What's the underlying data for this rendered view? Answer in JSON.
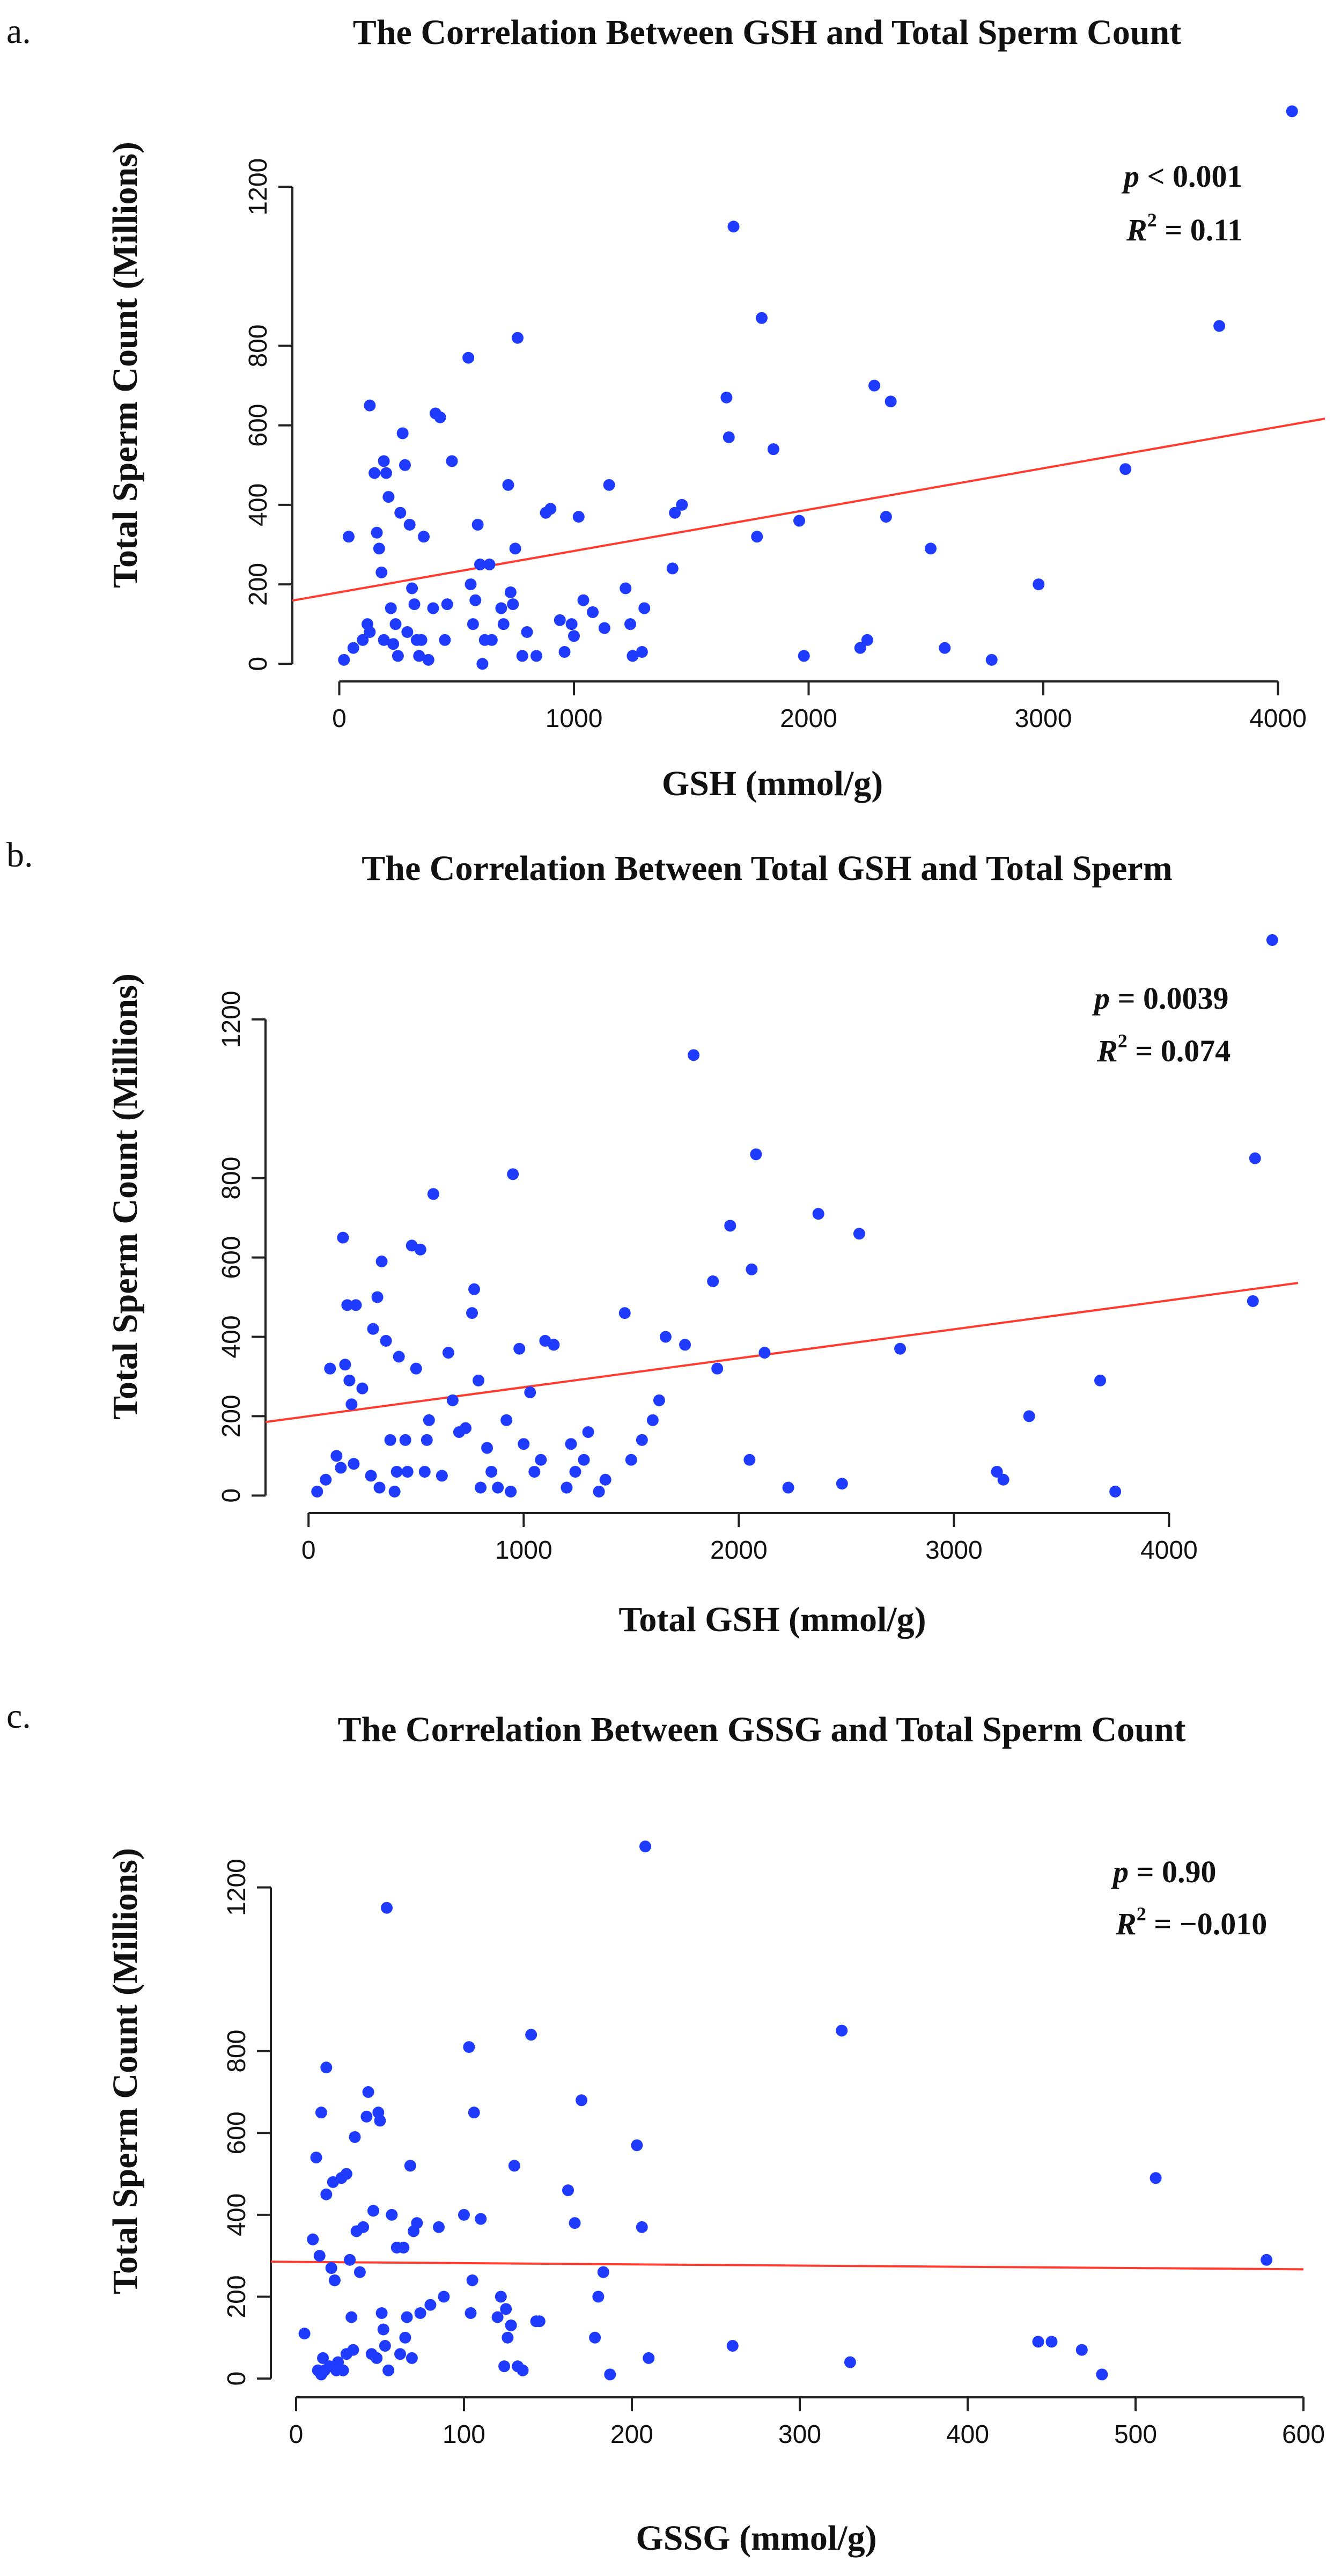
{
  "chart_data": [
    {
      "type": "scatter",
      "panel_label": "a.",
      "title": "The Correlation Between GSH and Total Sperm Count",
      "xlabel": "GSH (mmol/g)",
      "ylabel": "Total Sperm Count (Millions)",
      "xlim": [
        -200,
        4200
      ],
      "ylim": [
        -55,
        1400
      ],
      "x_ticks": [
        0,
        1000,
        2000,
        3000,
        4000
      ],
      "y_ticks": [
        0,
        200,
        400,
        600,
        800,
        1200
      ],
      "stats": {
        "p_prefix": "p",
        "p_text": " < 0.001",
        "r2_prefix": "R",
        "r2_sup": "2",
        "r2_text": " = 0.11"
      },
      "regression": {
        "intercept": 180,
        "slope": 0.104
      },
      "colors": {
        "points": "#1f3bff",
        "line": "#ff3a2e"
      },
      "points": [
        [
          20,
          10
        ],
        [
          40,
          320
        ],
        [
          60,
          40
        ],
        [
          100,
          60
        ],
        [
          120,
          100
        ],
        [
          130,
          80
        ],
        [
          130,
          650
        ],
        [
          150,
          480
        ],
        [
          160,
          330
        ],
        [
          170,
          290
        ],
        [
          180,
          230
        ],
        [
          190,
          510
        ],
        [
          190,
          60
        ],
        [
          200,
          480
        ],
        [
          210,
          420
        ],
        [
          220,
          140
        ],
        [
          230,
          50
        ],
        [
          240,
          100
        ],
        [
          250,
          20
        ],
        [
          260,
          380
        ],
        [
          270,
          580
        ],
        [
          280,
          500
        ],
        [
          290,
          80
        ],
        [
          300,
          350
        ],
        [
          310,
          190
        ],
        [
          320,
          150
        ],
        [
          330,
          60
        ],
        [
          340,
          20
        ],
        [
          350,
          60
        ],
        [
          360,
          320
        ],
        [
          380,
          10
        ],
        [
          400,
          140
        ],
        [
          410,
          630
        ],
        [
          430,
          620
        ],
        [
          450,
          60
        ],
        [
          460,
          150
        ],
        [
          480,
          510
        ],
        [
          550,
          770
        ],
        [
          560,
          200
        ],
        [
          570,
          100
        ],
        [
          580,
          160
        ],
        [
          590,
          350
        ],
        [
          600,
          250
        ],
        [
          610,
          0
        ],
        [
          620,
          60
        ],
        [
          640,
          250
        ],
        [
          650,
          60
        ],
        [
          690,
          140
        ],
        [
          700,
          100
        ],
        [
          720,
          450
        ],
        [
          730,
          180
        ],
        [
          740,
          150
        ],
        [
          750,
          290
        ],
        [
          760,
          820
        ],
        [
          780,
          20
        ],
        [
          800,
          80
        ],
        [
          840,
          20
        ],
        [
          880,
          380
        ],
        [
          900,
          390
        ],
        [
          940,
          110
        ],
        [
          960,
          30
        ],
        [
          990,
          100
        ],
        [
          1000,
          70
        ],
        [
          1020,
          370
        ],
        [
          1040,
          160
        ],
        [
          1080,
          130
        ],
        [
          1130,
          90
        ],
        [
          1150,
          450
        ],
        [
          1220,
          190
        ],
        [
          1240,
          100
        ],
        [
          1250,
          20
        ],
        [
          1290,
          30
        ],
        [
          1300,
          140
        ],
        [
          1420,
          240
        ],
        [
          1430,
          380
        ],
        [
          1460,
          400
        ],
        [
          1650,
          670
        ],
        [
          1660,
          570
        ],
        [
          1680,
          1100
        ],
        [
          1780,
          320
        ],
        [
          1800,
          870
        ],
        [
          1850,
          540
        ],
        [
          1960,
          360
        ],
        [
          1980,
          20
        ],
        [
          2220,
          40
        ],
        [
          2250,
          60
        ],
        [
          2280,
          700
        ],
        [
          2330,
          370
        ],
        [
          2350,
          660
        ],
        [
          2520,
          290
        ],
        [
          2580,
          40
        ],
        [
          2780,
          10
        ],
        [
          2980,
          200
        ],
        [
          3350,
          490
        ],
        [
          3750,
          850
        ],
        [
          4060,
          1390
        ]
      ]
    },
    {
      "type": "scatter",
      "panel_label": "b.",
      "title": "The Correlation Between Total GSH and Total Sperm",
      "xlabel": "Total GSH (mmol/g)",
      "ylabel": "Total Sperm Count (Millions)",
      "xlim": [
        -200,
        4600
      ],
      "ylim": [
        -55,
        1400
      ],
      "x_ticks": [
        0,
        1000,
        2000,
        3000,
        4000
      ],
      "y_ticks": [
        0,
        200,
        400,
        600,
        800,
        1200
      ],
      "stats": {
        "p_prefix": "p",
        "p_text": " = 0.0039",
        "r2_prefix": "R",
        "r2_sup": "2",
        "r2_text": " = 0.074"
      },
      "regression": {
        "intercept": 200,
        "slope": 0.073
      },
      "colors": {
        "points": "#1f3bff",
        "line": "#ff3a2e"
      },
      "points": [
        [
          40,
          10
        ],
        [
          80,
          40
        ],
        [
          100,
          320
        ],
        [
          130,
          100
        ],
        [
          150,
          70
        ],
        [
          160,
          650
        ],
        [
          170,
          330
        ],
        [
          180,
          480
        ],
        [
          190,
          290
        ],
        [
          200,
          230
        ],
        [
          210,
          80
        ],
        [
          220,
          480
        ],
        [
          250,
          270
        ],
        [
          290,
          50
        ],
        [
          300,
          420
        ],
        [
          320,
          500
        ],
        [
          330,
          20
        ],
        [
          340,
          590
        ],
        [
          360,
          390
        ],
        [
          380,
          140
        ],
        [
          400,
          10
        ],
        [
          410,
          60
        ],
        [
          420,
          350
        ],
        [
          450,
          140
        ],
        [
          460,
          60
        ],
        [
          480,
          630
        ],
        [
          500,
          320
        ],
        [
          520,
          620
        ],
        [
          540,
          60
        ],
        [
          550,
          140
        ],
        [
          560,
          190
        ],
        [
          580,
          760
        ],
        [
          620,
          50
        ],
        [
          650,
          360
        ],
        [
          670,
          240
        ],
        [
          700,
          160
        ],
        [
          730,
          170
        ],
        [
          760,
          460
        ],
        [
          770,
          520
        ],
        [
          790,
          290
        ],
        [
          800,
          20
        ],
        [
          830,
          120
        ],
        [
          850,
          60
        ],
        [
          880,
          20
        ],
        [
          920,
          190
        ],
        [
          940,
          10
        ],
        [
          950,
          810
        ],
        [
          980,
          370
        ],
        [
          1000,
          130
        ],
        [
          1030,
          260
        ],
        [
          1050,
          60
        ],
        [
          1080,
          90
        ],
        [
          1100,
          390
        ],
        [
          1140,
          380
        ],
        [
          1200,
          20
        ],
        [
          1220,
          130
        ],
        [
          1240,
          60
        ],
        [
          1280,
          90
        ],
        [
          1300,
          160
        ],
        [
          1350,
          10
        ],
        [
          1380,
          40
        ],
        [
          1470,
          460
        ],
        [
          1500,
          90
        ],
        [
          1550,
          140
        ],
        [
          1600,
          190
        ],
        [
          1630,
          240
        ],
        [
          1660,
          400
        ],
        [
          1750,
          380
        ],
        [
          1790,
          1110
        ],
        [
          1880,
          540
        ],
        [
          1900,
          320
        ],
        [
          1960,
          680
        ],
        [
          2050,
          90
        ],
        [
          2060,
          570
        ],
        [
          2080,
          860
        ],
        [
          2120,
          360
        ],
        [
          2230,
          20
        ],
        [
          2370,
          710
        ],
        [
          2480,
          30
        ],
        [
          2560,
          660
        ],
        [
          2750,
          370
        ],
        [
          3200,
          60
        ],
        [
          3230,
          40
        ],
        [
          3350,
          200
        ],
        [
          3680,
          290
        ],
        [
          3750,
          10
        ],
        [
          4390,
          490
        ],
        [
          4400,
          850
        ],
        [
          4480,
          1400
        ]
      ]
    },
    {
      "type": "scatter",
      "panel_label": "c.",
      "title": "The Correlation Between GSSG and Total Sperm Count",
      "xlabel": "GSSG (mmol/g)",
      "ylabel": "Total Sperm Count (Millions)",
      "xlim": [
        -15,
        600
      ],
      "ylim": [
        -55,
        1400
      ],
      "x_ticks": [
        0,
        100,
        200,
        300,
        400,
        500,
        600
      ],
      "y_ticks": [
        0,
        200,
        400,
        600,
        800,
        1200
      ],
      "stats": {
        "p_prefix": "p",
        "p_text": " = 0.90",
        "r2_prefix": "R",
        "r2_sup": "2",
        "r2_text": " = −0.010"
      },
      "regression": {
        "intercept": 285,
        "slope": -0.03
      },
      "colors": {
        "points": "#1f3bff",
        "line": "#ff3a2e"
      },
      "points": [
        [
          5,
          110
        ],
        [
          10,
          340
        ],
        [
          12,
          540
        ],
        [
          13,
          20
        ],
        [
          14,
          300
        ],
        [
          15,
          650
        ],
        [
          15,
          10
        ],
        [
          16,
          50
        ],
        [
          17,
          20
        ],
        [
          18,
          760
        ],
        [
          18,
          450
        ],
        [
          20,
          30
        ],
        [
          21,
          270
        ],
        [
          22,
          480
        ],
        [
          23,
          240
        ],
        [
          24,
          20
        ],
        [
          25,
          40
        ],
        [
          27,
          490
        ],
        [
          28,
          20
        ],
        [
          30,
          500
        ],
        [
          30,
          60
        ],
        [
          32,
          290
        ],
        [
          33,
          150
        ],
        [
          34,
          70
        ],
        [
          35,
          590
        ],
        [
          36,
          360
        ],
        [
          38,
          260
        ],
        [
          40,
          370
        ],
        [
          42,
          640
        ],
        [
          43,
          700
        ],
        [
          45,
          60
        ],
        [
          46,
          410
        ],
        [
          48,
          50
        ],
        [
          49,
          650
        ],
        [
          50,
          630
        ],
        [
          51,
          160
        ],
        [
          52,
          120
        ],
        [
          53,
          80
        ],
        [
          54,
          1150
        ],
        [
          55,
          20
        ],
        [
          57,
          400
        ],
        [
          60,
          320
        ],
        [
          62,
          60
        ],
        [
          64,
          320
        ],
        [
          65,
          100
        ],
        [
          66,
          150
        ],
        [
          68,
          520
        ],
        [
          69,
          50
        ],
        [
          70,
          360
        ],
        [
          72,
          380
        ],
        [
          74,
          160
        ],
        [
          80,
          180
        ],
        [
          85,
          370
        ],
        [
          88,
          200
        ],
        [
          100,
          400
        ],
        [
          103,
          810
        ],
        [
          104,
          160
        ],
        [
          105,
          240
        ],
        [
          106,
          650
        ],
        [
          110,
          390
        ],
        [
          120,
          150
        ],
        [
          122,
          200
        ],
        [
          124,
          30
        ],
        [
          125,
          170
        ],
        [
          126,
          100
        ],
        [
          128,
          130
        ],
        [
          130,
          520
        ],
        [
          132,
          30
        ],
        [
          135,
          20
        ],
        [
          140,
          840
        ],
        [
          143,
          140
        ],
        [
          145,
          140
        ],
        [
          162,
          460
        ],
        [
          166,
          380
        ],
        [
          170,
          680
        ],
        [
          178,
          100
        ],
        [
          180,
          200
        ],
        [
          183,
          260
        ],
        [
          187,
          10
        ],
        [
          203,
          570
        ],
        [
          206,
          370
        ],
        [
          208,
          1300
        ],
        [
          210,
          50
        ],
        [
          260,
          80
        ],
        [
          325,
          850
        ],
        [
          330,
          40
        ],
        [
          442,
          90
        ],
        [
          450,
          90
        ],
        [
          468,
          70
        ],
        [
          480,
          10
        ],
        [
          512,
          490
        ],
        [
          578,
          290
        ]
      ]
    }
  ]
}
